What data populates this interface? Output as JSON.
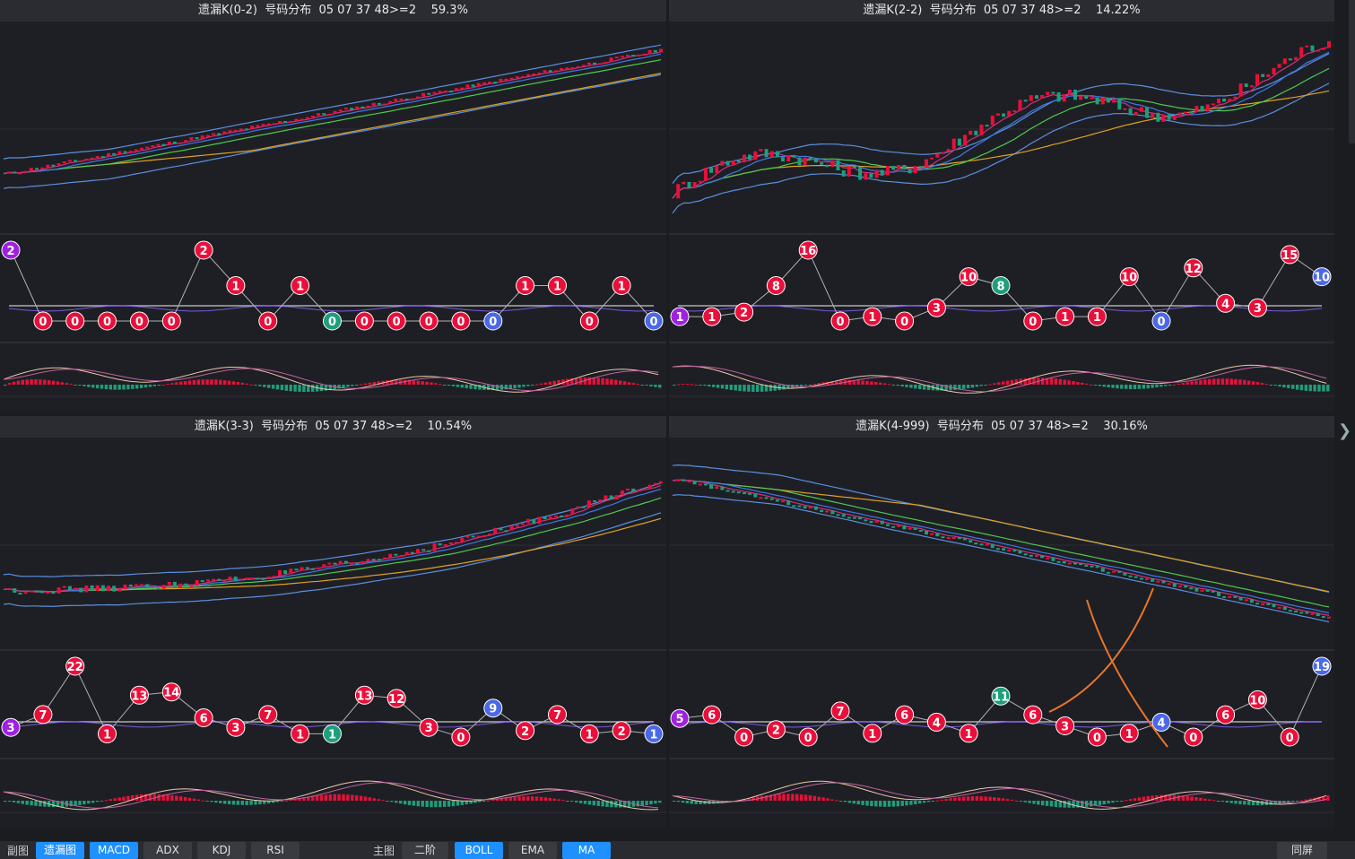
{
  "colors": {
    "red": "#e8103a",
    "green": "#1e9e7c",
    "blue": "#4a68e8",
    "purple": "#a020e0",
    "bg": "#1e1f24",
    "title_bg": "#2b2c31",
    "accent": "#1e90ff",
    "annotation": "#e8762a"
  },
  "panels": [
    {
      "title": "遗漏K(0-2)  号码分布  05 07 37 48>=2    59.3%",
      "chart_data": {
        "type": "line",
        "title": "遗漏K(0-2)",
        "distribution_series": [
          {
            "value": 2,
            "color": "purple"
          },
          {
            "value": 0,
            "color": "red"
          },
          {
            "value": 0,
            "color": "red"
          },
          {
            "value": 0,
            "color": "red"
          },
          {
            "value": 0,
            "color": "red"
          },
          {
            "value": 0,
            "color": "red"
          },
          {
            "value": 2,
            "color": "red"
          },
          {
            "value": 1,
            "color": "red"
          },
          {
            "value": 0,
            "color": "red"
          },
          {
            "value": 1,
            "color": "red"
          },
          {
            "value": 0,
            "color": "green"
          },
          {
            "value": 0,
            "color": "red"
          },
          {
            "value": 0,
            "color": "red"
          },
          {
            "value": 0,
            "color": "red"
          },
          {
            "value": 0,
            "color": "red"
          },
          {
            "value": 0,
            "color": "blue"
          },
          {
            "value": 1,
            "color": "red"
          },
          {
            "value": 1,
            "color": "red"
          },
          {
            "value": 0,
            "color": "red"
          },
          {
            "value": 1,
            "color": "red"
          },
          {
            "value": 0,
            "color": "blue"
          }
        ],
        "main_trend": "up",
        "main_start": 0.25,
        "main_end": 0.92,
        "main_noise": 0.02
      }
    },
    {
      "title": "遗漏K(2-2)  号码分布  05 07 37 48>=2    14.22%",
      "chart_data": {
        "type": "line",
        "title": "遗漏K(2-2)",
        "distribution_series": [
          {
            "value": 1,
            "color": "purple"
          },
          {
            "value": 1,
            "color": "red"
          },
          {
            "value": 2,
            "color": "red"
          },
          {
            "value": 8,
            "color": "red"
          },
          {
            "value": 16,
            "color": "red"
          },
          {
            "value": 0,
            "color": "red"
          },
          {
            "value": 1,
            "color": "red"
          },
          {
            "value": 0,
            "color": "red"
          },
          {
            "value": 3,
            "color": "red"
          },
          {
            "value": 10,
            "color": "red"
          },
          {
            "value": 8,
            "color": "green"
          },
          {
            "value": 0,
            "color": "red"
          },
          {
            "value": 1,
            "color": "red"
          },
          {
            "value": 1,
            "color": "red"
          },
          {
            "value": 10,
            "color": "red"
          },
          {
            "value": 0,
            "color": "blue"
          },
          {
            "value": 12,
            "color": "red"
          },
          {
            "value": 4,
            "color": "red"
          },
          {
            "value": 3,
            "color": "red"
          },
          {
            "value": 15,
            "color": "red"
          },
          {
            "value": 10,
            "color": "blue"
          }
        ],
        "main_trend": "wave",
        "main_start": 0.15,
        "main_end": 0.85,
        "main_noise": 0.08
      }
    },
    {
      "title": "遗漏K(3-3)  号码分布  05 07 37 48>=2    10.54%",
      "chart_data": {
        "type": "line",
        "title": "遗漏K(3-3)",
        "distribution_series": [
          {
            "value": 3,
            "color": "purple"
          },
          {
            "value": 7,
            "color": "red"
          },
          {
            "value": 22,
            "color": "red"
          },
          {
            "value": 1,
            "color": "red"
          },
          {
            "value": 13,
            "color": "red"
          },
          {
            "value": 14,
            "color": "red"
          },
          {
            "value": 6,
            "color": "red"
          },
          {
            "value": 3,
            "color": "red"
          },
          {
            "value": 7,
            "color": "red"
          },
          {
            "value": 1,
            "color": "red"
          },
          {
            "value": 1,
            "color": "green"
          },
          {
            "value": 13,
            "color": "red"
          },
          {
            "value": 12,
            "color": "red"
          },
          {
            "value": 3,
            "color": "red"
          },
          {
            "value": 0,
            "color": "red"
          },
          {
            "value": 9,
            "color": "blue"
          },
          {
            "value": 2,
            "color": "red"
          },
          {
            "value": 7,
            "color": "red"
          },
          {
            "value": 1,
            "color": "red"
          },
          {
            "value": 2,
            "color": "red"
          },
          {
            "value": 1,
            "color": "blue"
          }
        ],
        "main_trend": "up-late",
        "main_start": 0.25,
        "main_end": 0.85,
        "main_noise": 0.04
      }
    },
    {
      "title": "遗漏K(4-999)  号码分布  05 07 37 48>=2    30.16%",
      "chart_data": {
        "type": "line",
        "title": "遗漏K(4-999)",
        "distribution_series": [
          {
            "value": 5,
            "color": "purple"
          },
          {
            "value": 6,
            "color": "red"
          },
          {
            "value": 0,
            "color": "red"
          },
          {
            "value": 2,
            "color": "red"
          },
          {
            "value": 0,
            "color": "red"
          },
          {
            "value": 7,
            "color": "red"
          },
          {
            "value": 1,
            "color": "red"
          },
          {
            "value": 6,
            "color": "red"
          },
          {
            "value": 4,
            "color": "red"
          },
          {
            "value": 1,
            "color": "red"
          },
          {
            "value": 11,
            "color": "green"
          },
          {
            "value": 6,
            "color": "red"
          },
          {
            "value": 3,
            "color": "red"
          },
          {
            "value": 0,
            "color": "red"
          },
          {
            "value": 1,
            "color": "red"
          },
          {
            "value": 4,
            "color": "blue"
          },
          {
            "value": 0,
            "color": "red"
          },
          {
            "value": 6,
            "color": "red"
          },
          {
            "value": 10,
            "color": "red"
          },
          {
            "value": 0,
            "color": "red"
          },
          {
            "value": 19,
            "color": "blue"
          }
        ],
        "main_trend": "down",
        "main_start": 0.85,
        "main_end": 0.1,
        "main_noise": 0.02
      }
    }
  ],
  "bottom_bar": {
    "sub_label": "副图",
    "sub_buttons": [
      {
        "label": "遗漏图",
        "active": true
      },
      {
        "label": "MACD",
        "active": true
      },
      {
        "label": "ADX",
        "active": false
      },
      {
        "label": "KDJ",
        "active": false
      },
      {
        "label": "RSI",
        "active": false
      }
    ],
    "main_label": "主图",
    "main_buttons": [
      {
        "label": "二阶",
        "active": false
      },
      {
        "label": "BOLL",
        "active": true
      },
      {
        "label": "EMA",
        "active": false
      },
      {
        "label": "MA",
        "active": true
      }
    ],
    "sync_label": "同屏"
  }
}
